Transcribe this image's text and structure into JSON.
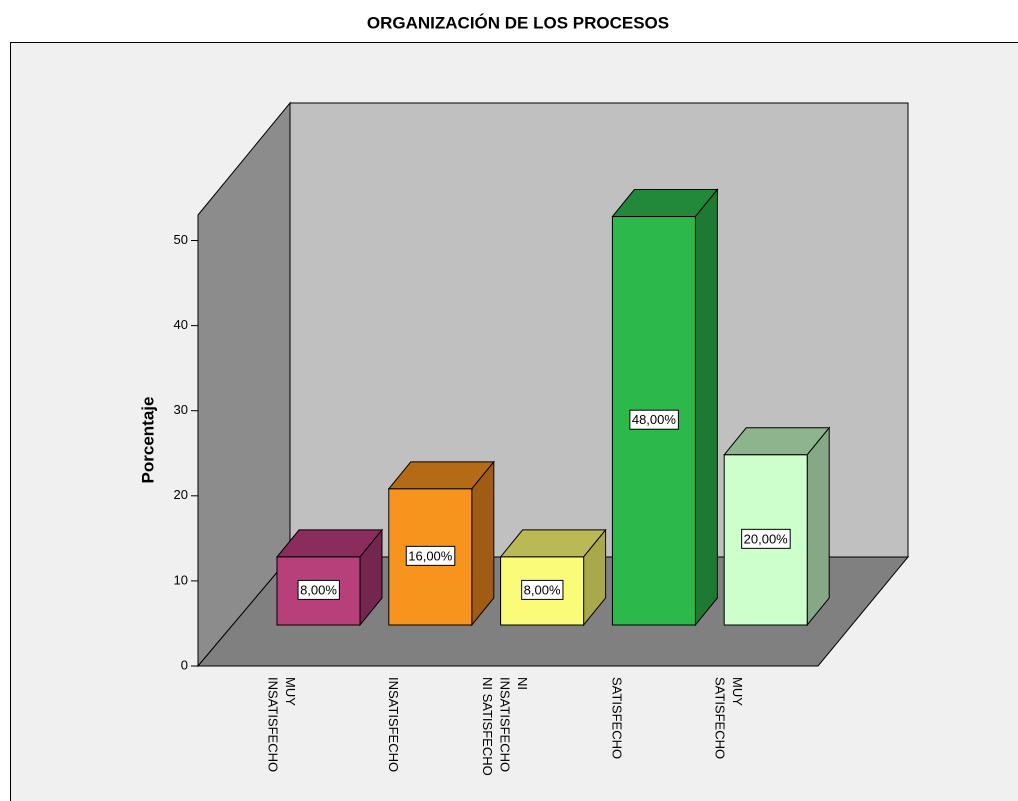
{
  "chart_data": {
    "type": "bar3d",
    "title": "ORGANIZACIÓN DE LOS PROCESOS",
    "y_label": "Porcentaje",
    "categories": [
      [
        "MUY",
        "INSATISFECHO"
      ],
      [
        "INSATISFECHO"
      ],
      [
        "NI",
        "INSATISFECHO",
        "NI SATISFECHO"
      ],
      [
        "SATISFECHO"
      ],
      [
        "MUY",
        "SATISFECHO"
      ]
    ],
    "values": [
      8,
      16,
      8,
      48,
      20
    ],
    "value_labels": [
      "8,00%",
      "16,00%",
      "8,00%",
      "48,00%",
      "20,00%"
    ],
    "colors": [
      {
        "front": "#b8407a",
        "top": "#8a2d5d",
        "side": "#742650"
      },
      {
        "front": "#f7941d",
        "top": "#b56b16",
        "side": "#a05c12"
      },
      {
        "front": "#fbfb7a",
        "top": "#b9b956",
        "side": "#a9a94b"
      },
      {
        "front": "#2db84a",
        "top": "#22893a",
        "side": "#1e7a33"
      },
      {
        "front": "#ccffcc",
        "top": "#8db48d",
        "side": "#86a886"
      }
    ],
    "ylim": [
      0,
      53
    ],
    "yticks": [
      0,
      10,
      20,
      30,
      40,
      50
    ]
  }
}
